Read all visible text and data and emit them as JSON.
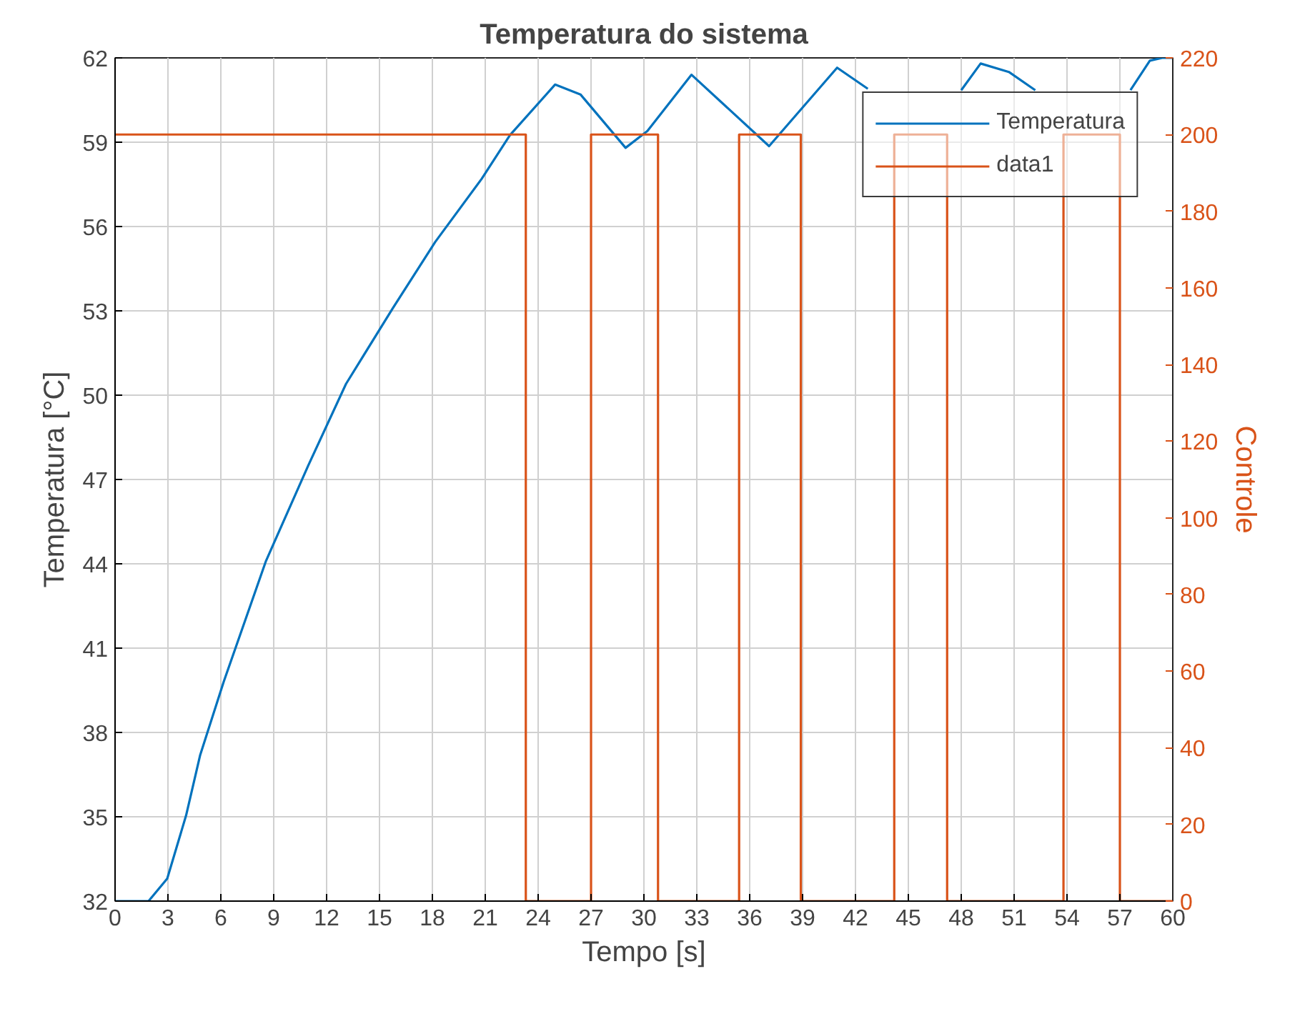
{
  "chart_data": {
    "type": "line",
    "title": "Temperatura do sistema",
    "xlabel": "Tempo [s]",
    "ylabel": "Temperatura [°C]",
    "y2label": "Controle",
    "series": [
      {
        "name": "Temperatura",
        "color": "#0072bd",
        "x": [
          0,
          1.9,
          2.96,
          4.03,
          4.83,
          6.16,
          8.56,
          10.96,
          13.1,
          15.76,
          18.16,
          20.8,
          22.4,
          24.96,
          26.4,
          28.96,
          30.2,
          32.7,
          37.1,
          40.96,
          42.7,
          43.5,
          47.5,
          48.0,
          49.1,
          50.7,
          52.2,
          53.0,
          57.0,
          57.6,
          58.7,
          59.4,
          60
        ],
        "values": [
          32,
          32,
          32.8,
          35.05,
          37.2,
          39.8,
          44.1,
          47.5,
          50.4,
          53.1,
          55.45,
          57.7,
          59.25,
          61.05,
          60.7,
          58.8,
          59.4,
          61.4,
          58.86,
          61.65,
          60.9,
          null,
          null,
          60.85,
          61.8,
          61.5,
          60.85,
          null,
          null,
          60.85,
          61.9,
          62,
          62
        ]
      },
      {
        "name": "data1",
        "type": "step",
        "axis": "y2",
        "color": "#d95319",
        "x": [
          0,
          23.3,
          27.0,
          30.8,
          35.4,
          38.9,
          44.2,
          47.2,
          53.8,
          57.0,
          60
        ],
        "values": [
          200,
          0,
          200,
          0,
          200,
          0,
          200,
          0,
          200,
          0,
          0
        ]
      }
    ],
    "xlim": [
      0,
      60
    ],
    "xticks": [
      0,
      3,
      6,
      9,
      12,
      15,
      18,
      21,
      24,
      27,
      30,
      33,
      36,
      39,
      42,
      45,
      48,
      51,
      54,
      57,
      60
    ],
    "ylim": [
      32,
      62
    ],
    "yticks": [
      32,
      35,
      38,
      41,
      44,
      47,
      50,
      53,
      56,
      59,
      62
    ],
    "y2lim": [
      0,
      220
    ],
    "y2ticks": [
      0,
      20,
      40,
      60,
      80,
      100,
      120,
      140,
      160,
      180,
      200,
      220
    ],
    "grid": true,
    "legend": "top right",
    "line_style": "solid"
  }
}
